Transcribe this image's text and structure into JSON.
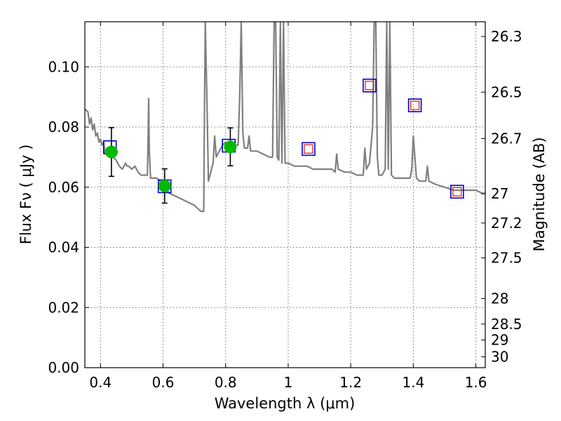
{
  "chart_data": {
    "type": "line",
    "xlabel": "Wavelength  λ (μm)",
    "ylabel": "Flux  Fν  ( μJy )",
    "y2label": "Magnitude (AB)",
    "xlim": [
      0.35,
      1.63
    ],
    "ylim": [
      0.0,
      0.115
    ],
    "x_ticks": [
      0.4,
      0.6,
      0.8,
      1.0,
      1.2,
      1.4,
      1.6
    ],
    "x_tick_labels": [
      "0.4",
      "0.6",
      "0.8",
      "1",
      "1.2",
      "1.4",
      "1.6"
    ],
    "y_ticks": [
      0.0,
      0.02,
      0.04,
      0.06,
      0.08,
      0.1
    ],
    "y_tick_labels": [
      "0.00",
      "0.02",
      "0.04",
      "0.06",
      "0.08",
      "0.10"
    ],
    "mag_ticks": [
      {
        "label": "26.3",
        "flux": 0.1101
      },
      {
        "label": "26.5",
        "flux": 0.0916
      },
      {
        "label": "26.7",
        "flux": 0.0762
      },
      {
        "label": "27",
        "flux": 0.0578
      },
      {
        "label": "27.2",
        "flux": 0.0481
      },
      {
        "label": "27.5",
        "flux": 0.0365
      },
      {
        "label": "28",
        "flux": 0.023
      },
      {
        "label": "28.5",
        "flux": 0.0145
      },
      {
        "label": "29",
        "flux": 0.0092
      },
      {
        "label": "30",
        "flux": 0.0036
      }
    ],
    "grid": true,
    "colors": {
      "spectrum": "#808080",
      "observed": "#00bb00",
      "model_box": "#0000cc",
      "upper_limit": "#dd2222",
      "error_bar": "#000000"
    },
    "spectrum": [
      [
        0.35,
        0.086
      ],
      [
        0.36,
        0.085
      ],
      [
        0.365,
        0.081
      ],
      [
        0.37,
        0.083
      ],
      [
        0.375,
        0.079
      ],
      [
        0.38,
        0.081
      ],
      [
        0.385,
        0.077
      ],
      [
        0.39,
        0.078
      ],
      [
        0.395,
        0.075
      ],
      [
        0.4,
        0.076
      ],
      [
        0.405,
        0.074
      ],
      [
        0.41,
        0.075
      ],
      [
        0.415,
        0.071
      ],
      [
        0.42,
        0.073
      ],
      [
        0.43,
        0.072
      ],
      [
        0.44,
        0.07
      ],
      [
        0.45,
        0.069
      ],
      [
        0.46,
        0.067
      ],
      [
        0.47,
        0.066
      ],
      [
        0.48,
        0.068
      ],
      [
        0.485,
        0.067
      ],
      [
        0.49,
        0.067
      ],
      [
        0.5,
        0.066
      ],
      [
        0.51,
        0.067
      ],
      [
        0.52,
        0.065
      ],
      [
        0.53,
        0.064
      ],
      [
        0.54,
        0.064
      ],
      [
        0.55,
        0.064
      ],
      [
        0.552,
        0.075
      ],
      [
        0.554,
        0.0895
      ],
      [
        0.556,
        0.072
      ],
      [
        0.56,
        0.063
      ],
      [
        0.57,
        0.063
      ],
      [
        0.58,
        0.063
      ],
      [
        0.59,
        0.062
      ],
      [
        0.6,
        0.061
      ],
      [
        0.62,
        0.058
      ],
      [
        0.64,
        0.057
      ],
      [
        0.66,
        0.056
      ],
      [
        0.68,
        0.055
      ],
      [
        0.7,
        0.054
      ],
      [
        0.72,
        0.052
      ],
      [
        0.73,
        0.052
      ],
      [
        0.732,
        0.08
      ],
      [
        0.735,
        0.115
      ],
      [
        0.74,
        0.09
      ],
      [
        0.745,
        0.062
      ],
      [
        0.75,
        0.064
      ],
      [
        0.76,
        0.068
      ],
      [
        0.765,
        0.077
      ],
      [
        0.77,
        0.07
      ],
      [
        0.78,
        0.072
      ],
      [
        0.79,
        0.074
      ],
      [
        0.8,
        0.075
      ],
      [
        0.81,
        0.074
      ],
      [
        0.82,
        0.075
      ],
      [
        0.83,
        0.074
      ],
      [
        0.84,
        0.074
      ],
      [
        0.845,
        0.09
      ],
      [
        0.85,
        0.115
      ],
      [
        0.855,
        0.078
      ],
      [
        0.86,
        0.073
      ],
      [
        0.87,
        0.073
      ],
      [
        0.875,
        0.077
      ],
      [
        0.88,
        0.072
      ],
      [
        0.9,
        0.072
      ],
      [
        0.92,
        0.071
      ],
      [
        0.94,
        0.07
      ],
      [
        0.95,
        0.07
      ],
      [
        0.955,
        0.115
      ],
      [
        0.96,
        0.115
      ],
      [
        0.965,
        0.07
      ],
      [
        0.97,
        0.069
      ],
      [
        0.975,
        0.115
      ],
      [
        0.98,
        0.068
      ],
      [
        0.985,
        0.115
      ],
      [
        0.99,
        0.068
      ],
      [
        1.0,
        0.068
      ],
      [
        1.02,
        0.067
      ],
      [
        1.04,
        0.067
      ],
      [
        1.06,
        0.067
      ],
      [
        1.08,
        0.066
      ],
      [
        1.1,
        0.066
      ],
      [
        1.12,
        0.066
      ],
      [
        1.14,
        0.066
      ],
      [
        1.15,
        0.065
      ],
      [
        1.155,
        0.071
      ],
      [
        1.16,
        0.066
      ],
      [
        1.18,
        0.065
      ],
      [
        1.2,
        0.065
      ],
      [
        1.22,
        0.064
      ],
      [
        1.24,
        0.064
      ],
      [
        1.245,
        0.073
      ],
      [
        1.25,
        0.066
      ],
      [
        1.26,
        0.068
      ],
      [
        1.27,
        0.08
      ],
      [
        1.275,
        0.115
      ],
      [
        1.28,
        0.115
      ],
      [
        1.285,
        0.07
      ],
      [
        1.29,
        0.064
      ],
      [
        1.3,
        0.064
      ],
      [
        1.31,
        0.066
      ],
      [
        1.315,
        0.115
      ],
      [
        1.32,
        0.066
      ],
      [
        1.325,
        0.115
      ],
      [
        1.33,
        0.064
      ],
      [
        1.34,
        0.063
      ],
      [
        1.36,
        0.063
      ],
      [
        1.38,
        0.063
      ],
      [
        1.39,
        0.063
      ],
      [
        1.395,
        0.066
      ],
      [
        1.4,
        0.077
      ],
      [
        1.405,
        0.07
      ],
      [
        1.41,
        0.063
      ],
      [
        1.42,
        0.062
      ],
      [
        1.44,
        0.062
      ],
      [
        1.445,
        0.067
      ],
      [
        1.45,
        0.062
      ],
      [
        1.47,
        0.061
      ],
      [
        1.5,
        0.06
      ],
      [
        1.53,
        0.059
      ],
      [
        1.56,
        0.059
      ],
      [
        1.58,
        0.059
      ],
      [
        1.6,
        0.059
      ],
      [
        1.62,
        0.058
      ],
      [
        1.63,
        0.058
      ]
    ],
    "model_photometry": [
      {
        "x": 0.43,
        "y": 0.0733
      },
      {
        "x": 0.605,
        "y": 0.0603
      },
      {
        "x": 0.81,
        "y": 0.0738
      },
      {
        "x": 1.065,
        "y": 0.0727
      },
      {
        "x": 1.26,
        "y": 0.0938
      },
      {
        "x": 1.405,
        "y": 0.0872
      },
      {
        "x": 1.54,
        "y": 0.0585
      }
    ],
    "observed_photometry": [
      {
        "x": 0.435,
        "y": 0.0717,
        "err": 0.0081
      },
      {
        "x": 0.605,
        "y": 0.0604,
        "err": 0.0057
      },
      {
        "x": 0.815,
        "y": 0.0734,
        "err": 0.0063
      }
    ],
    "upper_limits": [
      {
        "x": 1.065,
        "y": 0.0727
      },
      {
        "x": 1.26,
        "y": 0.0938
      },
      {
        "x": 1.405,
        "y": 0.0872
      },
      {
        "x": 1.54,
        "y": 0.0585
      }
    ]
  }
}
